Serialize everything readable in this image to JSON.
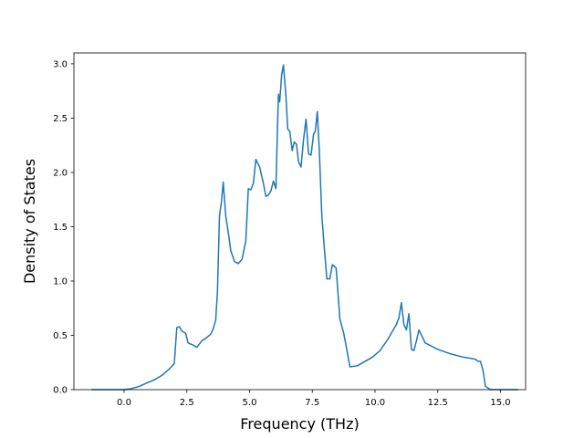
{
  "chart_data": {
    "type": "line",
    "title": "",
    "xlabel": "Frequency (THz)",
    "ylabel": "Density of States",
    "xlim": [
      -2.0,
      16.0
    ],
    "ylim": [
      0.0,
      3.1
    ],
    "xticks": [
      0.0,
      2.5,
      5.0,
      7.5,
      10.0,
      12.5,
      15.0
    ],
    "xtick_labels": [
      "0.0",
      "2.5",
      "5.0",
      "7.5",
      "10.0",
      "12.5",
      "15.0"
    ],
    "yticks": [
      0.0,
      0.5,
      1.0,
      1.5,
      2.0,
      2.5,
      3.0
    ],
    "ytick_labels": [
      "0.0",
      "0.5",
      "1.0",
      "1.5",
      "2.0",
      "2.5",
      "3.0"
    ],
    "grid": false,
    "line_color": "#1f77b4",
    "series": [
      {
        "x": [
          -1.3,
          -0.5,
          0.0,
          0.3,
          0.6,
          0.9,
          1.2,
          1.5,
          1.8,
          2.0,
          2.1,
          2.2,
          2.3,
          2.45,
          2.55,
          2.75,
          2.9,
          3.1,
          3.3,
          3.45,
          3.55,
          3.65,
          3.72,
          3.8,
          3.88,
          3.95,
          4.05,
          4.15,
          4.25,
          4.4,
          4.55,
          4.7,
          4.85,
          4.95,
          5.05,
          5.15,
          5.25,
          5.4,
          5.55,
          5.65,
          5.75,
          5.85,
          5.95,
          6.05,
          6.1,
          6.15,
          6.2,
          6.28,
          6.35,
          6.45,
          6.52,
          6.6,
          6.7,
          6.78,
          6.87,
          6.95,
          7.05,
          7.15,
          7.25,
          7.35,
          7.45,
          7.55,
          7.62,
          7.7,
          7.78,
          7.88,
          7.98,
          8.08,
          8.2,
          8.3,
          8.45,
          8.6,
          8.75,
          8.85,
          9.0,
          9.3,
          9.6,
          9.9,
          10.2,
          10.5,
          10.7,
          10.85,
          10.95,
          11.05,
          11.15,
          11.25,
          11.35,
          11.45,
          11.55,
          11.65,
          11.75,
          12.0,
          12.5,
          13.0,
          13.5,
          14.0,
          14.1,
          14.2,
          14.3,
          14.4,
          14.6,
          15.0,
          15.7
        ],
        "y": [
          0.0,
          0.0,
          0.0,
          0.01,
          0.03,
          0.06,
          0.09,
          0.13,
          0.19,
          0.24,
          0.57,
          0.58,
          0.54,
          0.52,
          0.43,
          0.41,
          0.39,
          0.45,
          0.48,
          0.51,
          0.56,
          0.64,
          0.9,
          1.6,
          1.73,
          1.91,
          1.6,
          1.45,
          1.28,
          1.18,
          1.16,
          1.2,
          1.37,
          1.85,
          1.84,
          1.9,
          2.12,
          2.05,
          1.9,
          1.78,
          1.79,
          1.83,
          1.92,
          1.85,
          2.3,
          2.72,
          2.65,
          2.9,
          2.99,
          2.7,
          2.4,
          2.38,
          2.2,
          2.28,
          2.26,
          2.1,
          2.05,
          2.3,
          2.49,
          2.17,
          2.16,
          2.35,
          2.38,
          2.56,
          2.2,
          1.6,
          1.3,
          1.02,
          1.02,
          1.15,
          1.12,
          0.65,
          0.52,
          0.4,
          0.21,
          0.22,
          0.26,
          0.3,
          0.36,
          0.46,
          0.54,
          0.6,
          0.66,
          0.8,
          0.6,
          0.55,
          0.7,
          0.37,
          0.36,
          0.45,
          0.55,
          0.43,
          0.37,
          0.33,
          0.3,
          0.28,
          0.26,
          0.26,
          0.18,
          0.03,
          0.0,
          0.0,
          0.0
        ]
      }
    ]
  }
}
